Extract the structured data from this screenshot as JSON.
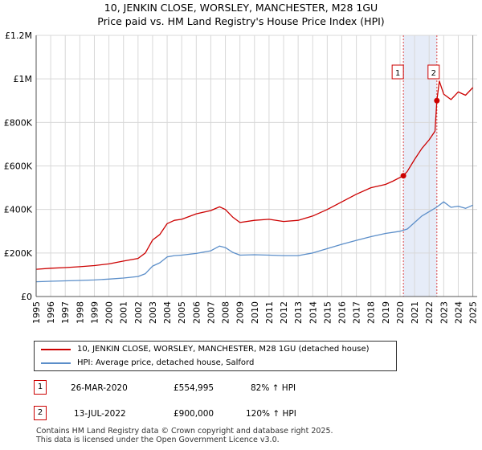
{
  "title": {
    "line1": "10, JENKIN CLOSE, WORSLEY, MANCHESTER, M28 1GU",
    "line2": "Price paid vs. HM Land Registry's House Price Index (HPI)"
  },
  "chart_data": {
    "type": "line",
    "title": "10, JENKIN CLOSE, WORSLEY, MANCHESTER, M28 1GU",
    "subtitle": "Price paid vs. HM Land Registry's House Price Index (HPI)",
    "xlabel": "",
    "ylabel": "",
    "xlim": [
      1995,
      2025.3
    ],
    "ylim": [
      0,
      1200000
    ],
    "grid": true,
    "y_ticks": [
      {
        "value": 0,
        "label": "£0"
      },
      {
        "value": 200000,
        "label": "£200K"
      },
      {
        "value": 400000,
        "label": "£400K"
      },
      {
        "value": 600000,
        "label": "£600K"
      },
      {
        "value": 800000,
        "label": "£800K"
      },
      {
        "value": 1000000,
        "label": "£1M"
      },
      {
        "value": 1200000,
        "label": "£1.2M"
      }
    ],
    "x_ticks": [
      "1995",
      "1996",
      "1997",
      "1998",
      "1999",
      "2000",
      "2001",
      "2002",
      "2003",
      "2004",
      "2005",
      "2006",
      "2007",
      "2008",
      "2009",
      "2010",
      "2011",
      "2012",
      "2013",
      "2014",
      "2015",
      "2016",
      "2017",
      "2018",
      "2019",
      "2020",
      "2021",
      "2022",
      "2023",
      "2024",
      "2025"
    ],
    "series": [
      {
        "name": "10, JENKIN CLOSE, WORSLEY, MANCHESTER, M28 1GU (detached house)",
        "color": "#cc0000",
        "x": [
          1995,
          1996,
          1997,
          1998,
          1999,
          2000,
          2001,
          2002,
          2002.5,
          2003,
          2003.5,
          2004,
          2004.5,
          2005,
          2006,
          2007,
          2007.6,
          2008,
          2008.5,
          2009,
          2010,
          2011,
          2012,
          2013,
          2014,
          2015,
          2016,
          2017,
          2018,
          2019,
          2019.5,
          2020.23,
          2020.5,
          2021,
          2021.5,
          2022,
          2022.4,
          2022.53,
          2022.7,
          2023,
          2023.5,
          2024,
          2024.5,
          2025
        ],
        "values": [
          125000,
          130000,
          133000,
          137000,
          142000,
          150000,
          163000,
          175000,
          200000,
          260000,
          285000,
          335000,
          350000,
          355000,
          380000,
          395000,
          412000,
          400000,
          365000,
          340000,
          350000,
          355000,
          345000,
          350000,
          370000,
          400000,
          435000,
          470000,
          500000,
          515000,
          530000,
          554995,
          575000,
          630000,
          680000,
          720000,
          760000,
          900000,
          990000,
          930000,
          905000,
          940000,
          925000,
          960000
        ]
      },
      {
        "name": "HPI: Average price, detached house, Salford",
        "color": "#5b8ec9",
        "x": [
          1995,
          1996,
          1997,
          1998,
          1999,
          2000,
          2001,
          2002,
          2002.5,
          2003,
          2003.5,
          2004,
          2004.5,
          2005,
          2006,
          2007,
          2007.6,
          2008,
          2008.5,
          2009,
          2010,
          2011,
          2012,
          2013,
          2014,
          2015,
          2016,
          2017,
          2018,
          2019,
          2020,
          2020.5,
          2021,
          2021.5,
          2022,
          2022.5,
          2023,
          2023.5,
          2024,
          2024.5,
          2025
        ],
        "values": [
          68000,
          70000,
          72000,
          74000,
          76000,
          80000,
          85000,
          92000,
          105000,
          140000,
          155000,
          182000,
          188000,
          190000,
          198000,
          210000,
          232000,
          225000,
          203000,
          190000,
          192000,
          190000,
          188000,
          188000,
          200000,
          220000,
          240000,
          258000,
          275000,
          290000,
          300000,
          310000,
          340000,
          370000,
          390000,
          410000,
          435000,
          410000,
          415000,
          405000,
          420000
        ]
      }
    ],
    "shaded_region": {
      "from": 2020.23,
      "to": 2022.53
    },
    "markers": [
      {
        "label": "1",
        "x": 2020.23,
        "value": 554995
      },
      {
        "label": "2",
        "x": 2022.53,
        "value": 900000
      }
    ]
  },
  "legend": {
    "entries": [
      {
        "label": "10, JENKIN CLOSE, WORSLEY, MANCHESTER, M28 1GU (detached house)",
        "color": "#cc0000"
      },
      {
        "label": "HPI: Average price, detached house, Salford",
        "color": "#5b8ec9"
      }
    ]
  },
  "transactions": [
    {
      "num": "1",
      "date": "26-MAR-2020",
      "price": "£554,995",
      "hpi": "82% ↑ HPI"
    },
    {
      "num": "2",
      "date": "13-JUL-2022",
      "price": "£900,000",
      "hpi": "120% ↑ HPI"
    }
  ],
  "footer": {
    "line1": "Contains HM Land Registry data © Crown copyright and database right 2025.",
    "line2": "This data is licensed under the Open Government Licence v3.0."
  }
}
